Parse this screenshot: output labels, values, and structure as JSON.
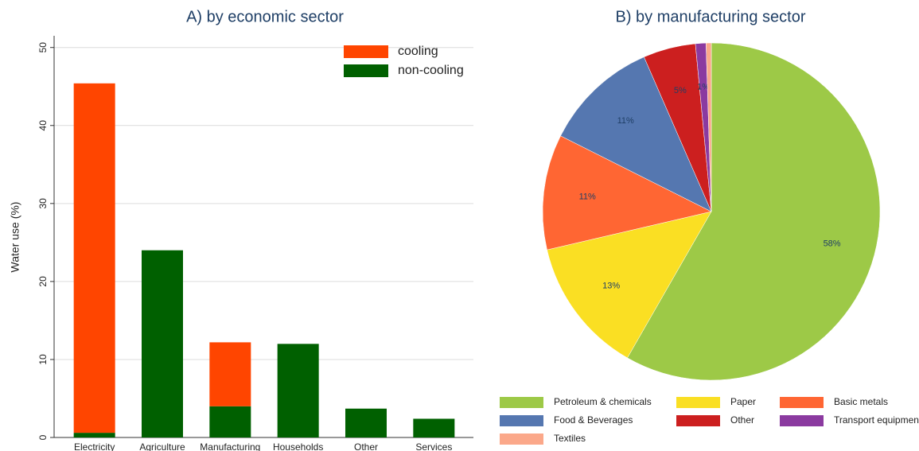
{
  "chart_data": [
    {
      "type": "bar",
      "title": "A) by economic sector",
      "y_label": "Water use (%)",
      "categories": [
        "Electricity",
        "Agriculture",
        "Manufacturing",
        "Households",
        "Other",
        "Services"
      ],
      "series": [
        {
          "name": "cooling",
          "color": "#ff4500",
          "values": [
            44.8,
            0,
            8.2,
            0,
            0,
            0
          ]
        },
        {
          "name": "non-cooling",
          "color": "#006000",
          "values": [
            0.6,
            24.0,
            4.0,
            12.0,
            3.7,
            2.4
          ]
        }
      ],
      "ylim": [
        0,
        51.5
      ],
      "yticks": [
        0,
        10,
        20,
        30,
        40,
        50
      ],
      "grid": true,
      "stacked": true,
      "legend": "top-right"
    },
    {
      "type": "pie",
      "title": "B) by manufacturing sector",
      "categories": [
        "Petroleum & chemicals",
        "Paper",
        "Basic metals",
        "Food & Beverages",
        "Other",
        "Transport equipment",
        "Textiles"
      ],
      "values": [
        58,
        13,
        11,
        11,
        5,
        1,
        0.5
      ],
      "value_labels": [
        "58%",
        "13%",
        "11%",
        "11%",
        "5%",
        "1%",
        null
      ],
      "colors": [
        "#9dc947",
        "#fadf23",
        "#ff6633",
        "#5577b0",
        "#cc1f1f",
        "#8b3aa0",
        "#fba88a"
      ],
      "legend": "bottom"
    }
  ]
}
